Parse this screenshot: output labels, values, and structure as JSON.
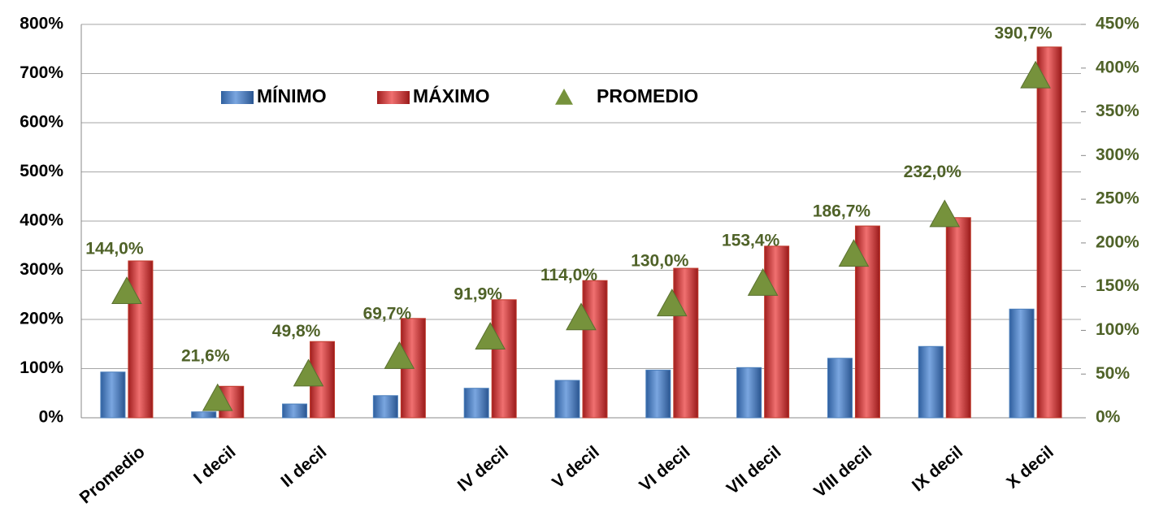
{
  "chart_data": {
    "type": "bar",
    "categories": [
      "Promedio",
      "I decil",
      "II decil",
      null,
      "IV decil",
      "V decil",
      "VI decil",
      "VII decil",
      "VIII decil",
      "IX decil",
      "X decil"
    ],
    "series": [
      {
        "name": "MÍNIMO",
        "color": "#4a7ebb",
        "values": [
          93,
          12,
          28,
          45,
          60,
          76,
          97,
          102,
          121,
          145,
          221
        ]
      },
      {
        "name": "MÁXIMO",
        "color": "#c0392b",
        "values": [
          319,
          64,
          155,
          202,
          240,
          279,
          304,
          349,
          390,
          407,
          754
        ]
      },
      {
        "name": "PROMEDIO",
        "color": "#76923c",
        "axis": "y2",
        "type": "scatter",
        "values": [
          144.0,
          21.6,
          49.8,
          69.7,
          91.9,
          114.0,
          130.0,
          153.4,
          186.7,
          232.0,
          390.7
        ],
        "value_labels": [
          "144,0%",
          "21,6%",
          "49,8%",
          "69,7%",
          "91,9%",
          "114,0%",
          "130,0%",
          "153,4%",
          "186,7%",
          "232,0%",
          "390,7%"
        ]
      }
    ],
    "ylim": [
      0,
      800
    ],
    "yticks": [
      {
        "value": 0,
        "label": "0%"
      },
      {
        "value": 100,
        "label": "100%"
      },
      {
        "value": 200,
        "label": "200%"
      },
      {
        "value": 300,
        "label": "300%"
      },
      {
        "value": 400,
        "label": "400%"
      },
      {
        "value": 500,
        "label": "500%"
      },
      {
        "value": 600,
        "label": "600%"
      },
      {
        "value": 700,
        "label": "700%"
      },
      {
        "value": 800,
        "label": "800%"
      }
    ],
    "y2lim": [
      0,
      450
    ],
    "y2ticks": [
      {
        "value": 0,
        "label": "0%"
      },
      {
        "value": 50,
        "label": "50%"
      },
      {
        "value": 100,
        "label": "100%"
      },
      {
        "value": 150,
        "label": "150%"
      },
      {
        "value": 200,
        "label": "200%"
      },
      {
        "value": 250,
        "label": "250%"
      },
      {
        "value": 300,
        "label": "300%"
      },
      {
        "value": 350,
        "label": "350%"
      },
      {
        "value": 400,
        "label": "400%"
      },
      {
        "value": 450,
        "label": "450%"
      }
    ],
    "grid": true
  }
}
